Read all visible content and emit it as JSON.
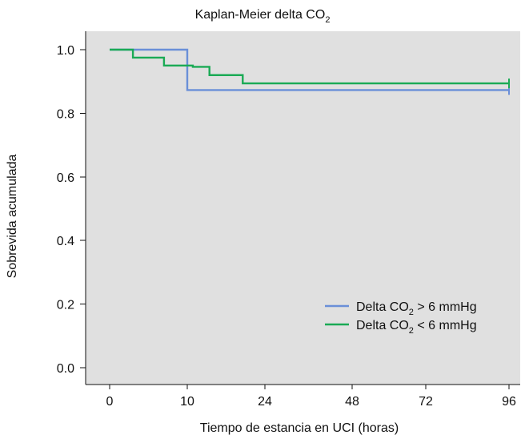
{
  "chart_data": {
    "type": "line",
    "title": {
      "main": "Kaplan-Meier delta CO",
      "sub": "2"
    },
    "xlabel": "Tiempo de estancia en UCI (horas)",
    "ylabel": "Sobrevida acumulada",
    "x_ticks": [
      "0",
      "10",
      "24",
      "48",
      "72",
      "96"
    ],
    "y_ticks": [
      "0.0",
      "0.2",
      "0.4",
      "0.6",
      "0.8",
      "1.0"
    ],
    "ylim": [
      0,
      1
    ],
    "grid": false,
    "legend": "bottom-right",
    "background_color": "#e0e0e0",
    "series": [
      {
        "name_parts": [
          "Delta CO",
          "2",
          " > 6 mmHg"
        ],
        "color": "#6a8fd8",
        "points": [
          {
            "x": 0,
            "y": 1.0
          },
          {
            "x": 10,
            "y": 1.0
          },
          {
            "x": 10,
            "y": 0.873
          },
          {
            "x": 96,
            "y": 0.873
          }
        ],
        "censor": [
          {
            "x": 96,
            "y": 0.873
          }
        ]
      },
      {
        "name_parts": [
          "Delta CO",
          "2",
          " < 6 mmHg"
        ],
        "color": "#1aaa55",
        "points": [
          {
            "x": 0,
            "y": 1.0
          },
          {
            "x": 3,
            "y": 1.0
          },
          {
            "x": 3,
            "y": 0.975
          },
          {
            "x": 7,
            "y": 0.975
          },
          {
            "x": 7,
            "y": 0.95
          },
          {
            "x": 11,
            "y": 0.95
          },
          {
            "x": 11,
            "y": 0.946
          },
          {
            "x": 14,
            "y": 0.946
          },
          {
            "x": 14,
            "y": 0.92
          },
          {
            "x": 20,
            "y": 0.92
          },
          {
            "x": 20,
            "y": 0.894
          },
          {
            "x": 96,
            "y": 0.894
          }
        ],
        "censor": [
          {
            "x": 96,
            "y": 0.894
          }
        ]
      }
    ]
  }
}
